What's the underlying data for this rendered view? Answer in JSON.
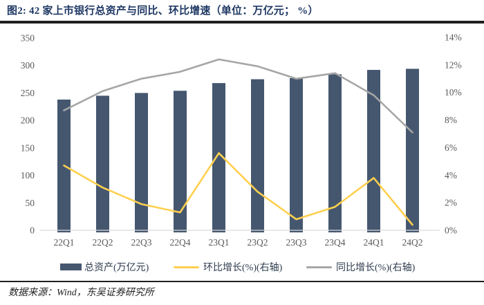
{
  "figure": {
    "title": "图2:  42 家上市银行总资产与同比、环比增速（单位：万亿元； %）",
    "source": "数据来源：Wind，东吴证券研究所"
  },
  "colors": {
    "title": "#1f3864",
    "bar": "#45576f",
    "qoq_line": "#ffd04f",
    "yoy_line": "#a6a6a6",
    "axis_text": "#595959",
    "baseline": "#d9d9d9",
    "rule": "#1f1f1f"
  },
  "chart_data": {
    "type": "bar+line combo",
    "categories": [
      "22Q1",
      "22Q2",
      "22Q3",
      "22Q4",
      "23Q1",
      "23Q2",
      "23Q3",
      "23Q4",
      "24Q1",
      "24Q2"
    ],
    "bar_series": {
      "name": "总资产(万亿元)",
      "axis": "left",
      "color": "#45576f",
      "values": [
        238,
        245,
        250,
        254,
        268,
        275,
        277,
        284,
        292,
        294
      ]
    },
    "line_series": [
      {
        "name": "环比增长(%)(右轴)",
        "axis": "right",
        "color": "#ffd04f",
        "values": [
          4.7,
          3.1,
          1.9,
          1.3,
          5.6,
          2.8,
          0.8,
          1.7,
          3.8,
          0.4
        ]
      },
      {
        "name": "同比增长(%)(右轴)",
        "axis": "right",
        "color": "#a6a6a6",
        "values": [
          8.7,
          10.1,
          11.0,
          11.5,
          12.4,
          11.9,
          11.0,
          11.4,
          9.8,
          7.1
        ]
      }
    ],
    "left_axis": {
      "min": 0,
      "max": 350,
      "step": 50,
      "ticks": [
        "0",
        "50",
        "100",
        "150",
        "200",
        "250",
        "300",
        "350"
      ]
    },
    "right_axis": {
      "min": 0,
      "max": 14,
      "step": 2,
      "ticks": [
        "0%",
        "2%",
        "4%",
        "6%",
        "8%",
        "10%",
        "12%",
        "14%"
      ]
    },
    "grid": false,
    "legend_position": "bottom"
  }
}
